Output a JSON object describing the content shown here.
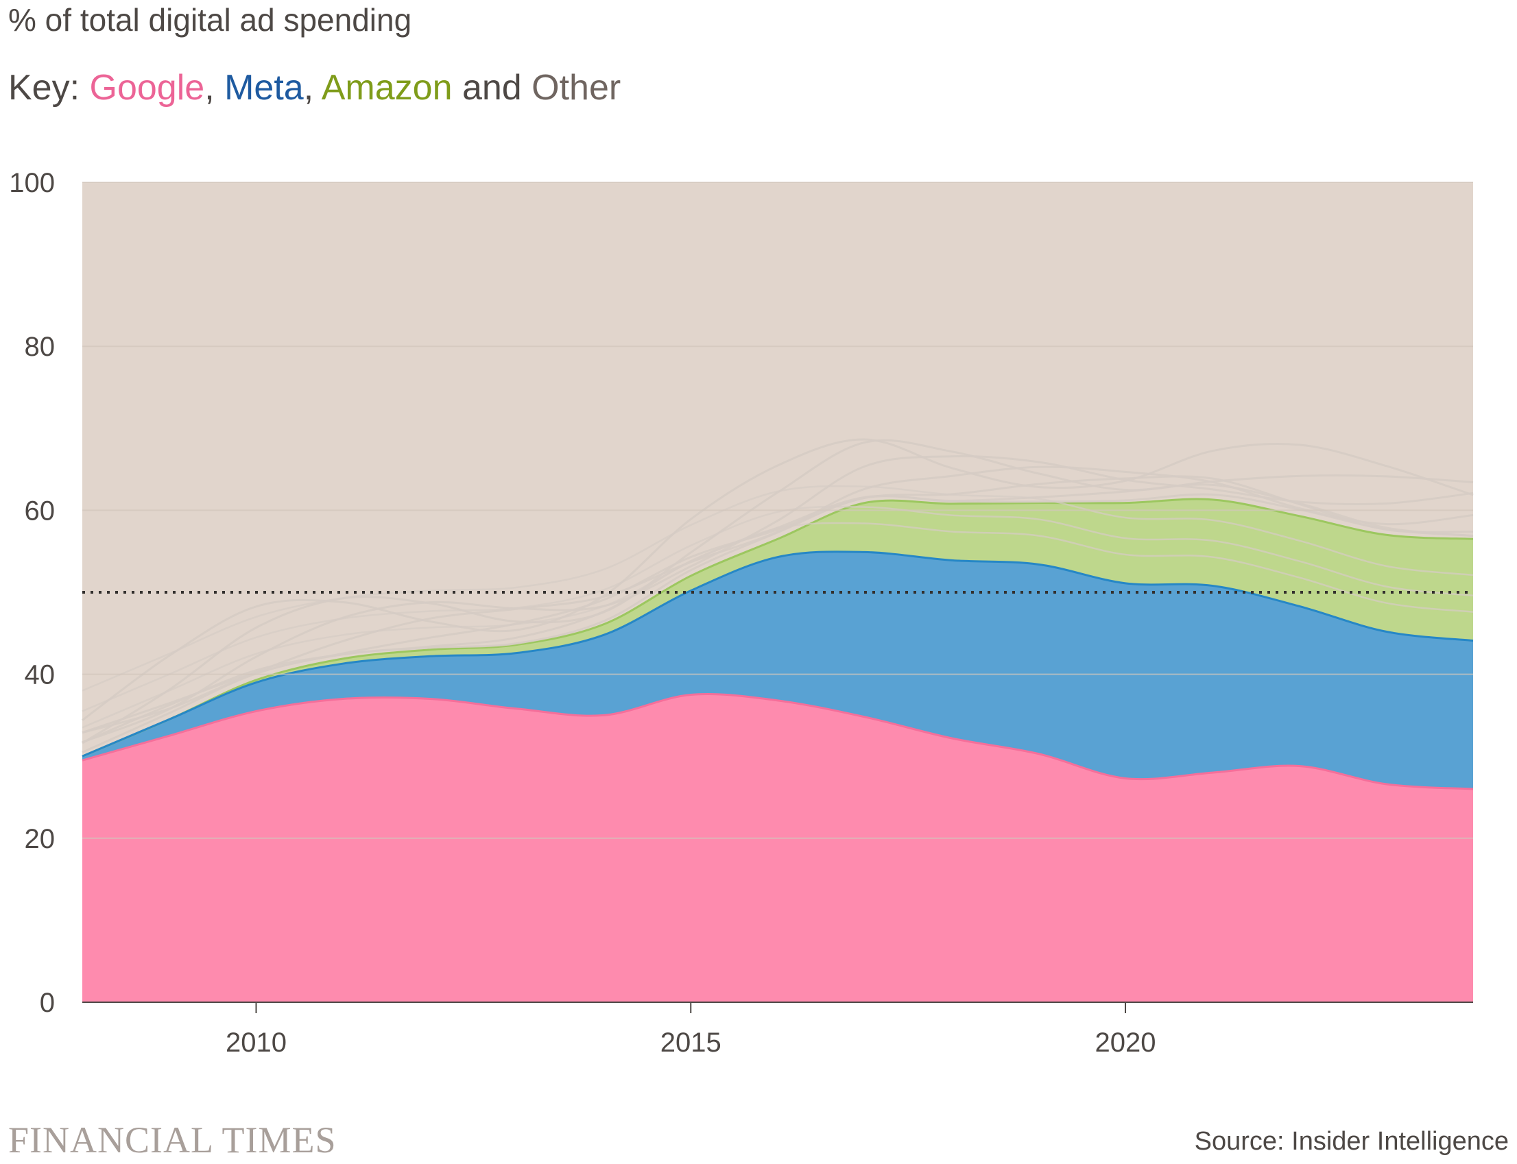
{
  "subtitle": "% of total digital ad spending",
  "key": {
    "prefix": "Key: ",
    "google": "Google",
    "sep1": ", ",
    "meta": "Meta",
    "sep2": ", ",
    "amazon": "Amazon",
    "and": " and ",
    "other": "Other"
  },
  "footer": {
    "brand": "FINANCIAL TIMES",
    "source": "Source: Insider Intelligence"
  },
  "colors": {
    "background_other": "#e1d5cc",
    "google": "#fe8bae",
    "google_line": "#f56f9a",
    "meta": "#59a2d3",
    "meta_line": "#2687c6",
    "amazon": "#bed78c",
    "amazon_line": "#9cc75f",
    "grid": "#d2c6bc",
    "faint_line": "#d6ccc4",
    "reference_line": "#33302e"
  },
  "chart_data": {
    "type": "area",
    "stacked": true,
    "x": [
      2008,
      2009,
      2010,
      2011,
      2012,
      2013,
      2014,
      2015,
      2016,
      2017,
      2018,
      2019,
      2020,
      2021,
      2022,
      2023,
      2024
    ],
    "series": [
      {
        "name": "Google",
        "values": [
          29.5,
          32.5,
          35.5,
          37.0,
          37.0,
          35.8,
          35.0,
          37.5,
          36.8,
          34.8,
          32.2,
          30.3,
          27.3,
          28.0,
          28.8,
          26.6,
          26.0
        ]
      },
      {
        "name": "Meta",
        "values": [
          0.5,
          2.0,
          3.5,
          4.3,
          5.2,
          6.8,
          9.8,
          12.7,
          17.5,
          20.1,
          21.7,
          23.1,
          23.8,
          22.8,
          19.5,
          18.6,
          18.1
        ]
      },
      {
        "name": "Amazon",
        "values": [
          0,
          0,
          0.3,
          0.6,
          0.8,
          1.0,
          1.3,
          1.8,
          2.2,
          6.0,
          6.9,
          7.5,
          9.8,
          10.5,
          11.0,
          11.8,
          12.4
        ]
      },
      {
        "name": "Other",
        "values": [
          70.0,
          65.5,
          60.7,
          58.1,
          57.0,
          56.4,
          53.9,
          48.0,
          43.5,
          39.1,
          39.2,
          39.1,
          39.1,
          38.7,
          40.7,
          43.0,
          43.5
        ]
      }
    ],
    "reference_line": 50,
    "ylim": [
      0,
      100
    ],
    "yticks": [
      0,
      20,
      40,
      60,
      80,
      100
    ],
    "xticks": [
      2010,
      2015,
      2020
    ],
    "xlim": [
      2008,
      2024
    ],
    "title": "% of total digital ad spending",
    "xlabel": "",
    "ylabel": "",
    "grid": true
  }
}
